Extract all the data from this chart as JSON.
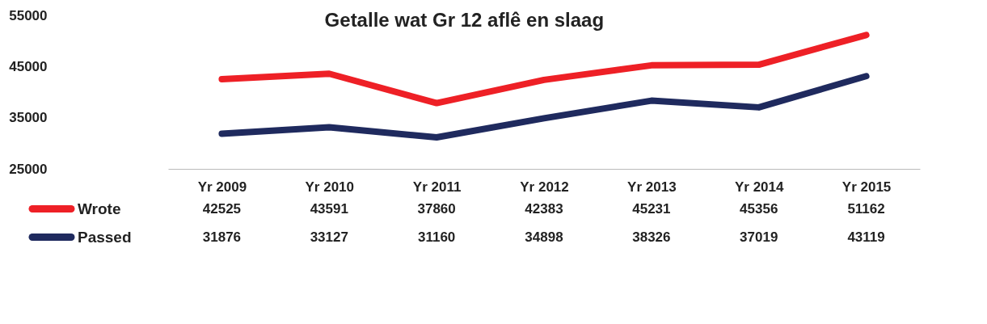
{
  "chart_data": {
    "type": "line",
    "title": "Getalle wat Gr 12 aflê en slaag",
    "categories": [
      "Yr 2009",
      "Yr 2010",
      "Yr 2011",
      "Yr 2012",
      "Yr 2013",
      "Yr 2014",
      "Yr 2015"
    ],
    "series": [
      {
        "name": "Wrote",
        "color": "#ee2026",
        "values": [
          42525,
          43591,
          37860,
          42383,
          45231,
          45356,
          51162
        ]
      },
      {
        "name": "Passed",
        "color": "#1f2a5e",
        "values": [
          31876,
          33127,
          31160,
          34898,
          38326,
          37019,
          43119
        ]
      }
    ],
    "ylim": [
      25000,
      55000
    ],
    "yticks": [
      25000,
      35000,
      45000,
      55000
    ],
    "data_labels": true,
    "legend": "bottom",
    "marker": "none",
    "line_style": "solid"
  }
}
